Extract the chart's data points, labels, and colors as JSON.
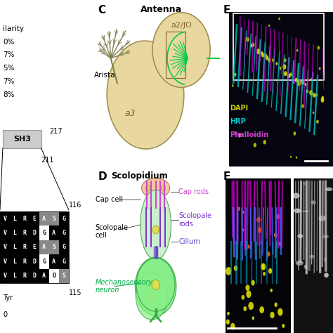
{
  "bg_color": "#ffffff",
  "left_panel": {
    "similarity_header": "ilarity",
    "similarity_values": [
      "0%",
      "7%",
      "5%",
      "7%",
      "8%"
    ],
    "number_217": "217",
    "number_211": "211",
    "number_116": "116",
    "number_115": "115",
    "sh3_label": "SH3",
    "tyr_label": "Tyr",
    "zero_label": "0",
    "sequences": [
      "VLREASG",
      "VLRDGAG",
      "VLREASG",
      "VLRDGAG",
      "VLRDAOS"
    ],
    "seq_colors": [
      [
        [
          "k",
          "w"
        ],
        [
          "k",
          "w"
        ],
        [
          "k",
          "w"
        ],
        [
          "k",
          "w"
        ],
        [
          "g",
          "w"
        ],
        [
          "g",
          "w"
        ],
        [
          "k",
          "w"
        ]
      ],
      [
        [
          "k",
          "w"
        ],
        [
          "k",
          "w"
        ],
        [
          "k",
          "w"
        ],
        [
          "k",
          "w"
        ],
        [
          "w",
          "b"
        ],
        [
          "k",
          "w"
        ],
        [
          "k",
          "w"
        ]
      ],
      [
        [
          "k",
          "w"
        ],
        [
          "k",
          "w"
        ],
        [
          "k",
          "w"
        ],
        [
          "k",
          "w"
        ],
        [
          "g",
          "w"
        ],
        [
          "g",
          "w"
        ],
        [
          "k",
          "w"
        ]
      ],
      [
        [
          "k",
          "w"
        ],
        [
          "k",
          "w"
        ],
        [
          "k",
          "w"
        ],
        [
          "k",
          "w"
        ],
        [
          "w",
          "b"
        ],
        [
          "k",
          "w"
        ],
        [
          "k",
          "w"
        ]
      ],
      [
        [
          "k",
          "w"
        ],
        [
          "k",
          "w"
        ],
        [
          "k",
          "w"
        ],
        [
          "k",
          "w"
        ],
        [
          "k",
          "w"
        ],
        [
          "w",
          "b"
        ],
        [
          "g",
          "w"
        ]
      ]
    ]
  },
  "panel_C": {
    "label": "C",
    "antenna_label": "Antenna",
    "arista_label": "Arista",
    "a2_jo_label": "a2/JO",
    "a3_label": "a3",
    "antenna_fill": "#e8d8a0",
    "antenna_edge": "#a09050",
    "green_color": "#00cc44",
    "arista_color": "#808050"
  },
  "panel_D": {
    "label": "D",
    "scolopidium_label": "Scolopidium",
    "cap_cell_label": "Cap cell",
    "scolopale_cell_label": "Scolopale\ncell",
    "mechanosensory_label": "Mechanosensory\nneuron",
    "cap_rods_label": "Cap rods",
    "scolopale_rods_label": "Scolopale\nrods",
    "cillum_label": "Cillum",
    "cap_rods_color": "#cc44cc",
    "scolopale_color": "#7733cc",
    "cillum_color": "#6644cc",
    "neuron_fill": "#88ee88",
    "neuron_label_color": "#00aa44",
    "cap_fill": "#f5c8a0",
    "scolo_fill": "#cceecc"
  },
  "panel_E": {
    "label": "E",
    "dapi_label": "DAPI",
    "hrp_label": "HRP",
    "phalloidin_label": "Phalloidin",
    "dapi_color": "#cccc00",
    "hrp_color": "#00cccc",
    "phalloidin_color": "#cc44cc"
  },
  "panel_F": {
    "label": "F"
  }
}
